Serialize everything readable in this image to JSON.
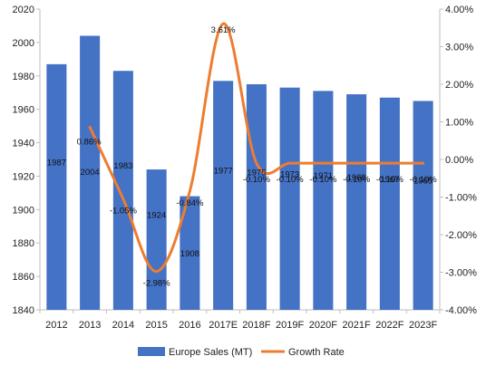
{
  "chart_data": {
    "type": "bar",
    "categories": [
      "2012",
      "2013",
      "2014",
      "2015",
      "2016",
      "2017E",
      "2018F",
      "2019F",
      "2020F",
      "2021F",
      "2022F",
      "2023F"
    ],
    "series": [
      {
        "name": "Europe Sales (MT)",
        "type": "bar",
        "axis": "left",
        "values": [
          1987,
          2004,
          1983,
          1924,
          1908,
          1977,
          1975,
          1973,
          1971,
          1969,
          1967,
          1965
        ],
        "labels": [
          "1987",
          "2004",
          "1983",
          "1924",
          "1908",
          "1977",
          "1975",
          "1973",
          "1971",
          "1969",
          "1967",
          "1965"
        ]
      },
      {
        "name": "Growth Rate",
        "type": "line",
        "axis": "right",
        "smooth": true,
        "values": [
          null,
          0.86,
          -1.05,
          -2.98,
          -0.84,
          3.61,
          -0.1,
          -0.1,
          -0.1,
          -0.1,
          -0.1,
          -0.1
        ],
        "labels": [
          "",
          "0.86%",
          "-1.05%",
          "-2.98%",
          "-0.84%",
          "3.61%",
          "-0.10%",
          "-0.10%",
          "-0.10%",
          "-0.10%",
          "-0.10%",
          "-0.10%"
        ]
      }
    ],
    "y_left": {
      "ylim": [
        1840,
        2020
      ],
      "ticks": [
        "1840",
        "1860",
        "1880",
        "1900",
        "1920",
        "1940",
        "1960",
        "1980",
        "2000",
        "2020"
      ]
    },
    "y_right": {
      "ylim": [
        -4,
        4
      ],
      "ticks": [
        "-4.00%",
        "-3.00%",
        "-2.00%",
        "-1.00%",
        "0.00%",
        "1.00%",
        "2.00%",
        "3.00%",
        "4.00%"
      ]
    },
    "grid": false,
    "legend": "bottom",
    "colors": {
      "bar": "#4472C4",
      "line": "#ED7D31",
      "axis": "#BFBFBF"
    }
  }
}
